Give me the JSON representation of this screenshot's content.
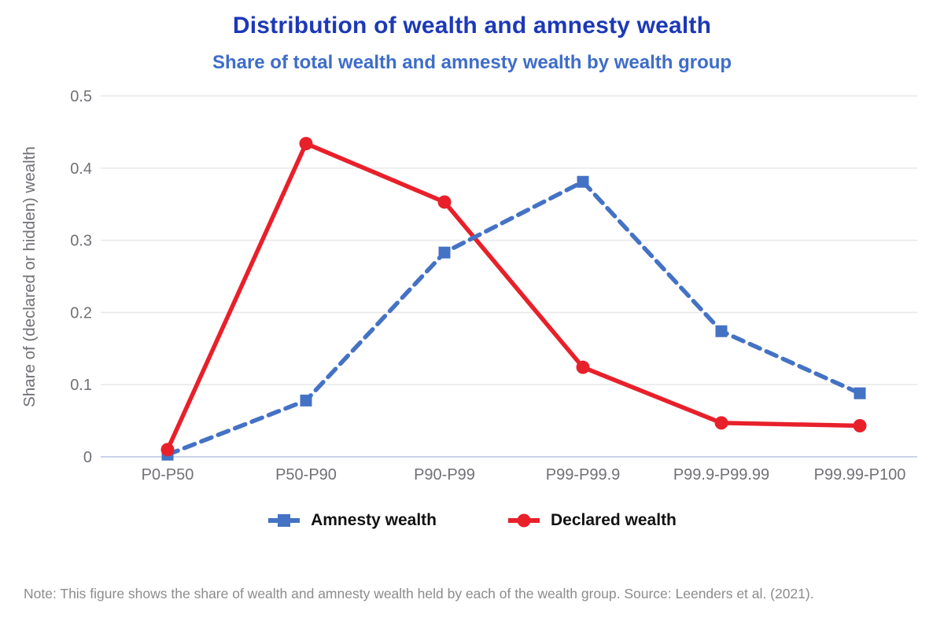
{
  "chart_data": {
    "type": "line",
    "title": "Distribution of wealth and amnesty wealth",
    "subtitle": "Share of total wealth and amnesty wealth by wealth group",
    "ylabel": "Share of (declared or hidden) wealth",
    "xlabel": "",
    "categories": [
      "P0-P50",
      "P50-P90",
      "P90-P99",
      "P99-P99.9",
      "P99.9-P99.99",
      "P99.99-P100"
    ],
    "series": [
      {
        "name": "Amnesty wealth",
        "color": "#4472C4",
        "line_style": "dashed",
        "marker": "square",
        "values": [
          0.003,
          0.078,
          0.283,
          0.381,
          0.174,
          0.088
        ]
      },
      {
        "name": "Declared wealth",
        "color": "#E8202A",
        "line_style": "solid",
        "marker": "circle",
        "values": [
          0.01,
          0.434,
          0.353,
          0.124,
          0.047,
          0.043
        ]
      }
    ],
    "ylim": [
      0,
      0.5
    ],
    "ytick_step": 0.1,
    "yticks": [
      "0",
      "0.1",
      "0.2",
      "0.3",
      "0.4",
      "0.5"
    ],
    "grid": "horizontal",
    "legend_position": "bottom"
  },
  "note": "Note: This figure shows the share of wealth and amnesty wealth held by each of the wealth group. Source: Leenders et al. (2021).",
  "colors": {
    "title": "#1C39B6",
    "subtitle": "#3E6DC9",
    "axis_text": "#707176",
    "grid_line": "#E9E9E9",
    "zero_line": "#CBD4E8",
    "note_text": "#8C8C8C",
    "legend_text": "#121212",
    "background": "#FFFFFF"
  }
}
